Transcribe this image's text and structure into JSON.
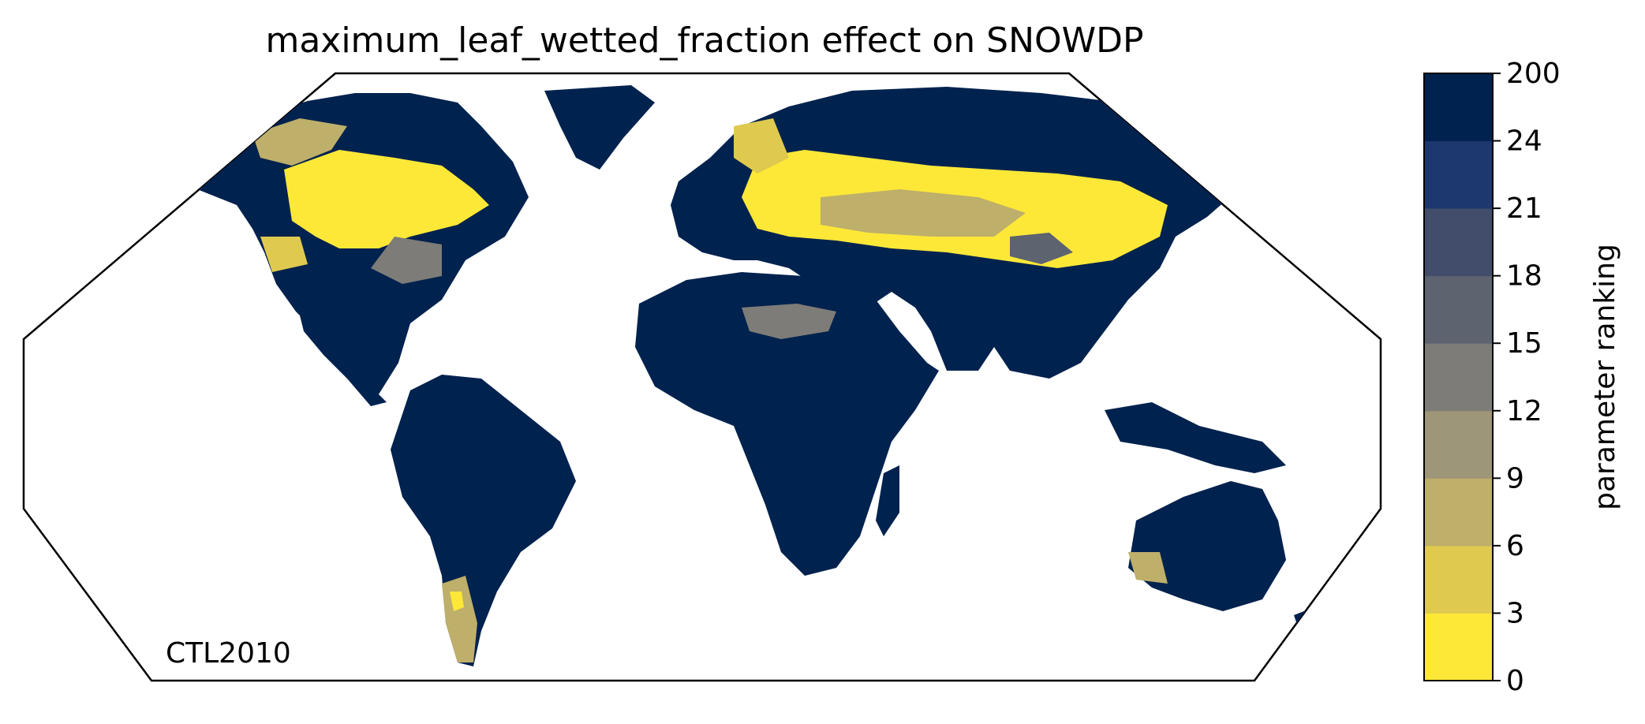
{
  "title": "maximum_leaf_wetted_fraction effect on SNOWDP",
  "map_label": "CTL2010",
  "colorbar": {
    "label": "parameter ranking",
    "ticks": [
      "0",
      "3",
      "6",
      "9",
      "12",
      "15",
      "18",
      "21",
      "24",
      "200"
    ],
    "bins": [
      {
        "from": 0,
        "to": 3,
        "color": "#fde838"
      },
      {
        "from": 3,
        "to": 6,
        "color": "#dfca4f"
      },
      {
        "from": 6,
        "to": 9,
        "color": "#beaf6a"
      },
      {
        "from": 9,
        "to": 12,
        "color": "#9e9678"
      },
      {
        "from": 12,
        "to": 15,
        "color": "#7d7c78"
      },
      {
        "from": 15,
        "to": 18,
        "color": "#5e6370"
      },
      {
        "from": 18,
        "to": 21,
        "color": "#424d6b"
      },
      {
        "from": 21,
        "to": 24,
        "color": "#1d386e"
      },
      {
        "from": 24,
        "to": 200,
        "color": "#00224e"
      }
    ]
  },
  "colors": {
    "coastline": "#808080",
    "map_border": "#000000",
    "land_default": "#00224e"
  },
  "map": {
    "projection": "Robinson",
    "regions": [
      {
        "name": "North America",
        "dominant_rank_bin": "0-3 (north), 24-200 (south)"
      },
      {
        "name": "South America",
        "dominant_rank_bin": "24-200"
      },
      {
        "name": "Africa",
        "dominant_rank_bin": "24-200"
      },
      {
        "name": "Europe and Northern Asia",
        "dominant_rank_bin": "0-3 mixed with 24-200"
      },
      {
        "name": "Southern Asia",
        "dominant_rank_bin": "24-200"
      },
      {
        "name": "Australia",
        "dominant_rank_bin": "24-200"
      }
    ]
  }
}
